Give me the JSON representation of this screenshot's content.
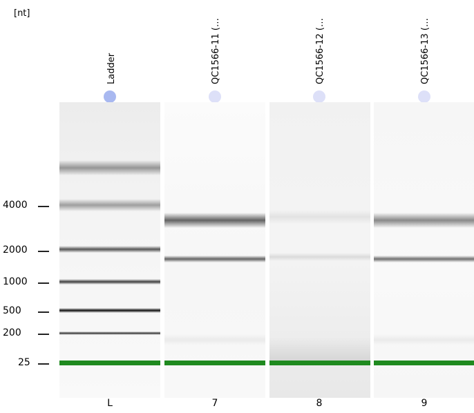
{
  "unit_label": "[nt]",
  "y_axis_ticks": [
    "4000",
    "2000",
    "1000",
    "500",
    "200",
    "25"
  ],
  "lanes": [
    {
      "title": "Ladder",
      "number": "L",
      "dot_color": "#a8b8f0"
    },
    {
      "title": "QC1566-11 (…",
      "number": "7",
      "dot_color": "#dde0f8"
    },
    {
      "title": "QC1566-12 (…",
      "number": "8",
      "dot_color": "#dde0f8"
    },
    {
      "title": "QC1566-13 (…",
      "number": "9",
      "dot_color": "#dde0f8"
    }
  ],
  "colors": {
    "marker_band": "#1f8a1f"
  }
}
